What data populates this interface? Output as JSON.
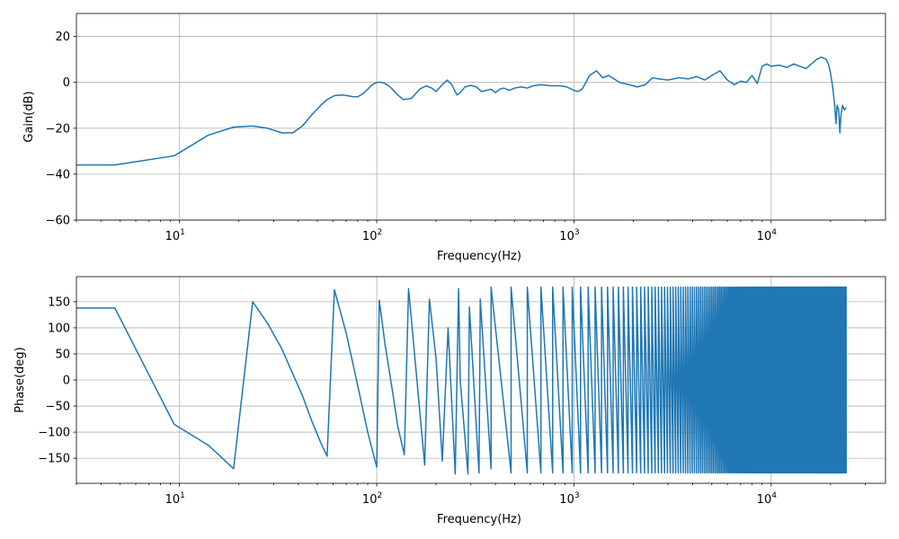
{
  "chart_data": [
    {
      "type": "line",
      "title": "",
      "xlabel": "Frequency(Hz)",
      "ylabel": "Gain(dB)",
      "xscale": "log",
      "xlim": [
        3,
        38000
      ],
      "ylim": [
        -60,
        30
      ],
      "grid": true,
      "color": "#1f77b4",
      "yticks": [
        -60,
        -40,
        -20,
        0,
        20
      ],
      "xticks": [
        {
          "value": 10,
          "base": "10",
          "exp": "1"
        },
        {
          "value": 100,
          "base": "10",
          "exp": "2"
        },
        {
          "value": 1000,
          "base": "10",
          "exp": "3"
        },
        {
          "value": 10000,
          "base": "10",
          "exp": "4"
        }
      ],
      "series": [
        {
          "x": [
            3,
            4.7,
            9.4,
            14,
            18.8,
            23.5,
            28,
            33,
            37.5,
            42,
            47,
            52,
            56,
            61,
            66,
            71,
            75,
            80,
            85,
            90,
            95,
            100,
            106,
            110,
            117,
            126,
            136,
            150,
            165,
            178,
            190,
            200,
            215,
            228,
            240,
            255,
            265,
            280,
            300,
            320,
            340,
            360,
            380,
            400,
            420,
            440,
            470,
            500,
            540,
            580,
            620,
            680,
            760,
            850,
            920,
            1000,
            1050,
            1100,
            1150,
            1200,
            1300,
            1400,
            1500,
            1700,
            1900,
            2100,
            2300,
            2500,
            2700,
            3000,
            3400,
            3800,
            4200,
            4600,
            5000,
            5500,
            6000,
            6500,
            7000,
            7500,
            8000,
            8500,
            9000,
            9500,
            10000,
            11000,
            12000,
            13000,
            14000,
            15000,
            16000,
            17000,
            18000,
            19000,
            19500,
            20000,
            20500,
            21000,
            21300,
            21600,
            22000,
            22300,
            22600,
            23000,
            23500,
            24000
          ],
          "y": [
            -36,
            -36,
            -32,
            -23,
            -19.5,
            -19,
            -20,
            -22,
            -22,
            -19,
            -14,
            -10,
            -7.5,
            -5.8,
            -5.5,
            -5.8,
            -6.2,
            -6.3,
            -5,
            -3,
            -1,
            0,
            0,
            -0.5,
            -2,
            -5,
            -7.5,
            -7,
            -3,
            -1.5,
            -2.5,
            -4,
            -1,
            1,
            -1,
            -5.5,
            -4.5,
            -2,
            -1.3,
            -2,
            -4,
            -3.5,
            -3,
            -4.5,
            -3,
            -2.5,
            -3.5,
            -2.5,
            -2,
            -2.5,
            -1.5,
            -1,
            -1.5,
            -1.5,
            -2,
            -3.5,
            -4,
            -3,
            0,
            3,
            5,
            2,
            3,
            0,
            -1,
            -2,
            -1,
            2,
            1.5,
            1,
            2,
            1.5,
            2.5,
            1,
            3,
            5,
            1,
            -1,
            0.5,
            0,
            3,
            -0.5,
            7,
            8,
            7,
            7.5,
            6.5,
            8,
            7,
            6,
            8,
            10,
            11,
            10,
            8,
            4,
            -2,
            -10,
            -18,
            -10,
            -12,
            -22,
            -14,
            -10,
            -12,
            -11
          ]
        }
      ]
    },
    {
      "type": "line",
      "title": "",
      "xlabel": "Frequency(Hz)",
      "ylabel": "Phase(deg)",
      "xscale": "log",
      "xlim": [
        3,
        38000
      ],
      "ylim": [
        -198,
        198
      ],
      "grid": true,
      "color": "#1f77b4",
      "yticks": [
        -150,
        -100,
        -50,
        0,
        50,
        100,
        150
      ],
      "xticks": [
        {
          "value": 10,
          "base": "10",
          "exp": "1"
        },
        {
          "value": 100,
          "base": "10",
          "exp": "2"
        },
        {
          "value": 1000,
          "base": "10",
          "exp": "3"
        },
        {
          "value": 10000,
          "base": "10",
          "exp": "4"
        }
      ],
      "series": [
        {
          "x": [
            3,
            4.7,
            9.4,
            14,
            18.8,
            23.5,
            28,
            33,
            37.5,
            42,
            47,
            52,
            56,
            61,
            70,
            80,
            90,
            100,
            103,
            110,
            120,
            128,
            138,
            145,
            175,
            185,
            200,
            215,
            230,
            250,
            260,
            265,
            290,
            295,
            330,
            335,
            380
          ],
          "y": [
            138,
            138,
            -85,
            -125,
            -170,
            150,
            108,
            60,
            12,
            -30,
            -80,
            -120,
            -146,
            173,
            90,
            -10,
            -100,
            -167,
            153,
            70,
            -20,
            -90,
            -143,
            175,
            -163,
            155,
            40,
            -155,
            100,
            -180,
            175,
            0,
            -180,
            140,
            -178,
            155,
            -170
          ],
          "phase_model": {
            "tau_seconds": 0.01,
            "from_hz": 380,
            "to_hz": 24000,
            "wrap_deg": 180
          }
        }
      ]
    }
  ]
}
